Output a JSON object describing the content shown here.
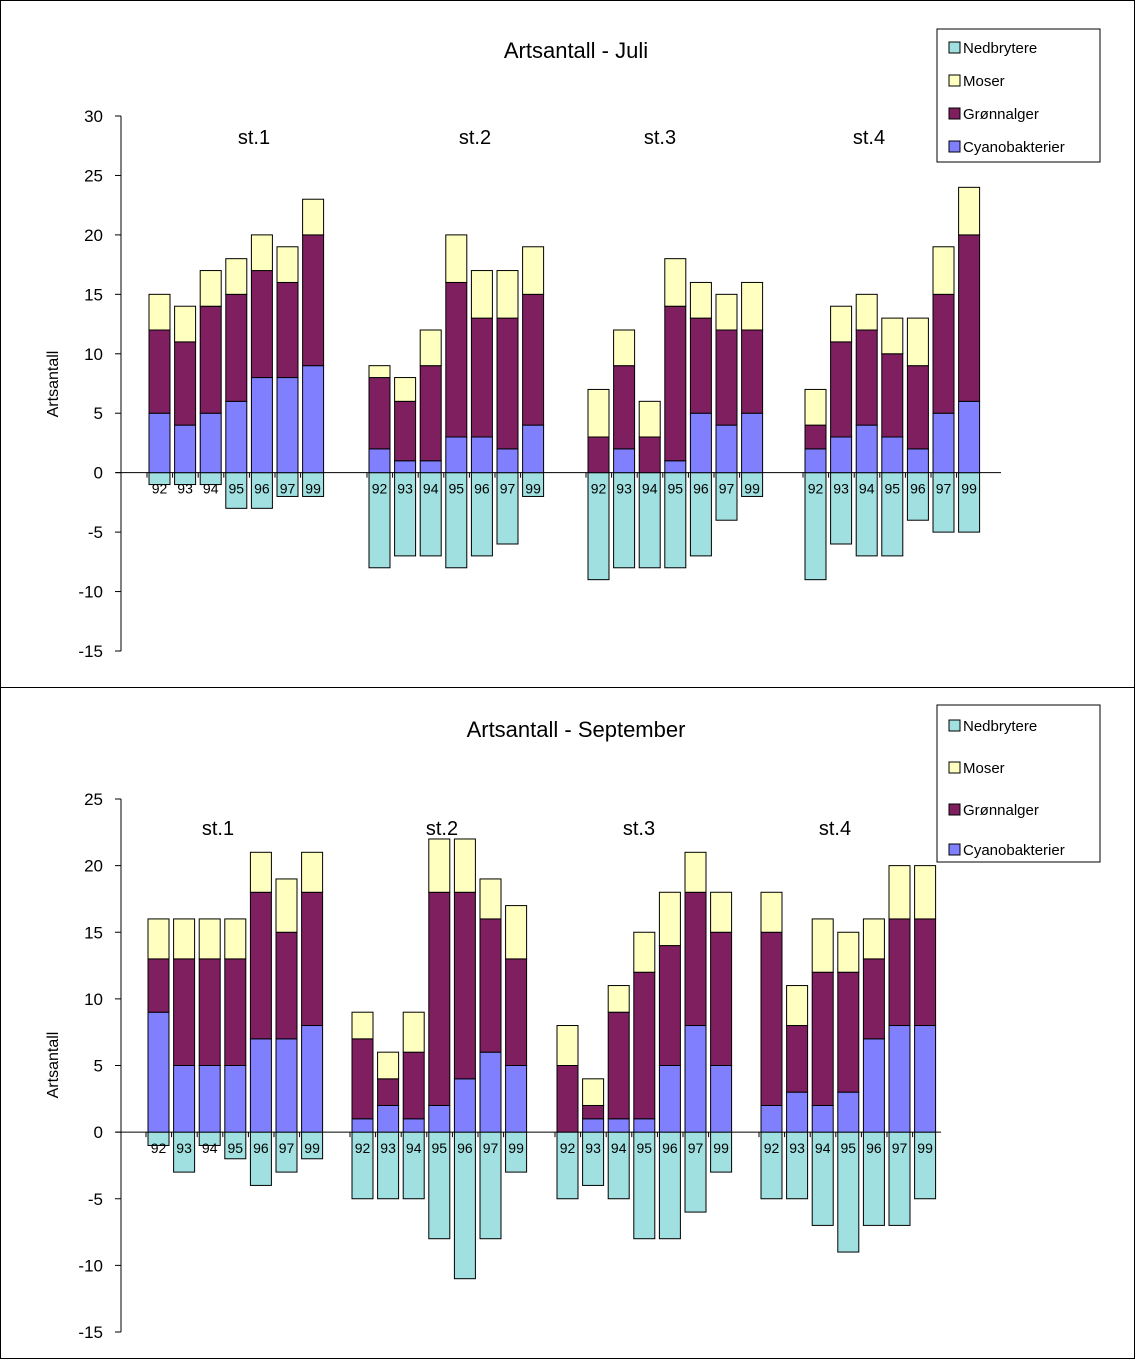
{
  "charts": [
    {
      "type": "bar",
      "title": "Artsantall - Juli",
      "ylabel": "Artsantall",
      "ylim": [
        -15,
        30
      ],
      "yticks": [
        30,
        25,
        20,
        15,
        10,
        5,
        0,
        -5,
        -10,
        -15
      ],
      "legend": [
        "Nedbrytere",
        "Moser",
        "Grønnalger",
        "Cyanobakterier"
      ],
      "colors": {
        "Cyanobakterier": "#8080ff",
        "Grønnalger": "#7f1f5f",
        "Moser": "#ffffc0",
        "Nedbrytere": "#a0e0e0"
      },
      "stations": [
        {
          "label": "st.1",
          "years": [
            "92",
            "93",
            "94",
            "95",
            "96",
            "97",
            "99"
          ],
          "Cyanobakterier": [
            5,
            4,
            5,
            6,
            8,
            8,
            9
          ],
          "Grønnalger": [
            7,
            7,
            9,
            9,
            9,
            8,
            11
          ],
          "Moser": [
            3,
            3,
            3,
            3,
            3,
            3,
            3
          ],
          "Nedbrytere": [
            -1,
            -1,
            -1,
            -3,
            -3,
            -2,
            -2
          ]
        },
        {
          "label": "st.2",
          "years": [
            "92",
            "93",
            "94",
            "95",
            "96",
            "97",
            "99"
          ],
          "Cyanobakterier": [
            2,
            1,
            1,
            3,
            3,
            2,
            4
          ],
          "Grønnalger": [
            6,
            5,
            8,
            13,
            10,
            11,
            11
          ],
          "Moser": [
            1,
            2,
            3,
            4,
            4,
            4,
            4
          ],
          "Nedbrytere": [
            -8,
            -7,
            -7,
            -8,
            -7,
            -6,
            -2
          ]
        },
        {
          "label": "st.3",
          "years": [
            "92",
            "93",
            "94",
            "95",
            "96",
            "97",
            "99"
          ],
          "Cyanobakterier": [
            0,
            2,
            0,
            1,
            5,
            4,
            5
          ],
          "Grønnalger": [
            3,
            7,
            3,
            13,
            8,
            8,
            7
          ],
          "Moser": [
            4,
            3,
            3,
            4,
            3,
            3,
            4
          ],
          "Nedbrytere": [
            -9,
            -8,
            -8,
            -8,
            -7,
            -4,
            -2
          ]
        },
        {
          "label": "st.4",
          "years": [
            "92",
            "93",
            "94",
            "95",
            "96",
            "97",
            "99"
          ],
          "Cyanobakterier": [
            2,
            3,
            4,
            3,
            2,
            5,
            6
          ],
          "Grønnalger": [
            2,
            8,
            8,
            7,
            7,
            10,
            14
          ],
          "Moser": [
            3,
            3,
            3,
            3,
            4,
            4,
            4
          ],
          "Nedbrytere": [
            -9,
            -6,
            -7,
            -7,
            -4,
            -5,
            -5
          ]
        }
      ]
    },
    {
      "type": "bar",
      "title": "Artsantall - September",
      "ylabel": "Artsantall",
      "ylim": [
        -15,
        25
      ],
      "yticks": [
        25,
        20,
        15,
        10,
        5,
        0,
        -5,
        -10,
        -15
      ],
      "legend": [
        "Nedbrytere",
        "Moser",
        "Grønnalger",
        "Cyanobakterier"
      ],
      "colors": {
        "Cyanobakterier": "#8080ff",
        "Grønnalger": "#7f1f5f",
        "Moser": "#ffffc0",
        "Nedbrytere": "#a0e0e0"
      },
      "stations": [
        {
          "label": "st.1",
          "years": [
            "92",
            "93",
            "94",
            "95",
            "96",
            "97",
            "99"
          ],
          "Cyanobakterier": [
            9,
            5,
            5,
            5,
            7,
            7,
            8
          ],
          "Grønnalger": [
            4,
            8,
            8,
            8,
            11,
            8,
            10
          ],
          "Moser": [
            3,
            3,
            3,
            3,
            3,
            4,
            3
          ],
          "Nedbrytere": [
            -1,
            -3,
            -1,
            -2,
            -4,
            -3,
            -2
          ]
        },
        {
          "label": "st.2",
          "years": [
            "92",
            "93",
            "94",
            "95",
            "96",
            "97",
            "99"
          ],
          "Cyanobakterier": [
            1,
            2,
            1,
            2,
            4,
            6,
            5
          ],
          "Grønnalger": [
            6,
            2,
            5,
            16,
            14,
            10,
            8
          ],
          "Moser": [
            2,
            2,
            3,
            4,
            4,
            3,
            4
          ],
          "Nedbrytere": [
            -5,
            -5,
            -5,
            -8,
            -11,
            -8,
            -3
          ]
        },
        {
          "label": "st.3",
          "years": [
            "92",
            "93",
            "94",
            "95",
            "96",
            "97",
            "99"
          ],
          "Cyanobakterier": [
            0,
            1,
            1,
            1,
            5,
            8,
            5
          ],
          "Grønnalger": [
            5,
            1,
            8,
            11,
            9,
            10,
            10
          ],
          "Moser": [
            3,
            2,
            2,
            3,
            4,
            3,
            3
          ],
          "Nedbrytere": [
            -5,
            -4,
            -5,
            -8,
            -8,
            -6,
            -3
          ]
        },
        {
          "label": "st.4",
          "years": [
            "92",
            "93",
            "94",
            "95",
            "96",
            "97",
            "99"
          ],
          "Cyanobakterier": [
            2,
            3,
            2,
            3,
            7,
            8,
            8
          ],
          "Grønnalger": [
            13,
            5,
            10,
            9,
            6,
            8,
            8
          ],
          "Moser": [
            3,
            3,
            4,
            3,
            3,
            4,
            4
          ],
          "Nedbrytere": [
            -5,
            -5,
            -7,
            -9,
            -7,
            -7,
            -5
          ]
        }
      ]
    }
  ],
  "chart_data": [
    {
      "type": "bar",
      "title": "Artsantall - Juli",
      "ylabel": "Artsantall",
      "ylim": [
        -15,
        30
      ],
      "series": [
        "Cyanobakterier",
        "Grønnalger",
        "Moser",
        "Nedbrytere"
      ],
      "categories": [
        "st.1",
        "st.2",
        "st.3",
        "st.4"
      ],
      "x": [
        "92",
        "93",
        "94",
        "95",
        "96",
        "97",
        "99"
      ]
    },
    {
      "type": "bar",
      "title": "Artsantall - September",
      "ylabel": "Artsantall",
      "ylim": [
        -15,
        25
      ],
      "series": [
        "Cyanobakterier",
        "Grønnalger",
        "Moser",
        "Nedbrytere"
      ],
      "categories": [
        "st.1",
        "st.2",
        "st.3",
        "st.4"
      ],
      "x": [
        "92",
        "93",
        "94",
        "95",
        "96",
        "97",
        "99"
      ]
    }
  ]
}
